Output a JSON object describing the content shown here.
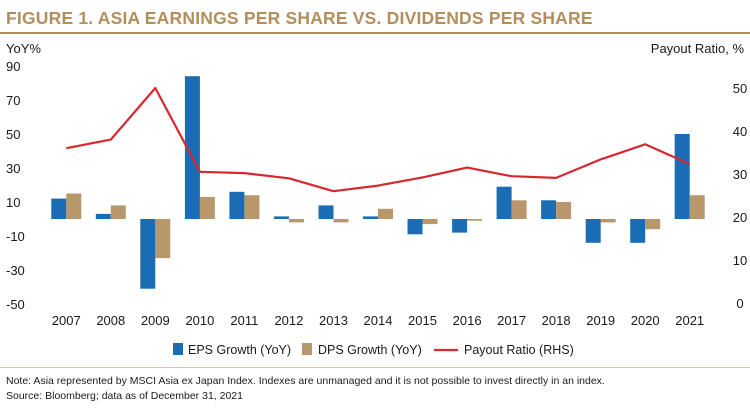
{
  "figure": {
    "title": "FIGURE 1.  ASIA EARNINGS PER SHARE VS. DIVIDENDS PER SHARE",
    "note": "Note: Asia represented by MSCI Asia ex Japan Index. Indexes are unmanaged and it is not possible to invest directly in an index.",
    "source": "Source: Bloomberg; data as of December 31, 2021"
  },
  "chart_data": {
    "type": "bar",
    "categories": [
      "2007",
      "2008",
      "2009",
      "2010",
      "2011",
      "2012",
      "2013",
      "2014",
      "2015",
      "2016",
      "2017",
      "2018",
      "2019",
      "2020",
      "2021"
    ],
    "ylabel": "YoY%",
    "y2label": "Payout Ratio, %",
    "ylim": [
      -50,
      90
    ],
    "yticks": [
      -50,
      -30,
      -10,
      10,
      30,
      50,
      70,
      90
    ],
    "y2lim": [
      0,
      55
    ],
    "y2ticks": [
      0,
      10,
      20,
      30,
      40,
      50
    ],
    "grid": false,
    "legend_position": "bottom",
    "series": [
      {
        "name": "EPS Growth (YoY)",
        "type": "bar",
        "axis": "left",
        "color": "#1a6cb4",
        "values": [
          12,
          3,
          -41,
          84,
          16,
          1.5,
          8,
          1.5,
          -9,
          -8,
          19,
          11,
          -14,
          -14,
          50
        ]
      },
      {
        "name": "DPS Growth (YoY)",
        "type": "bar",
        "axis": "left",
        "color": "#b8976b",
        "values": [
          15,
          8,
          -23,
          13,
          14,
          -2,
          -2,
          6,
          -3,
          -1,
          11,
          10,
          -2,
          -6,
          14
        ]
      },
      {
        "name": "Payout Ratio (RHS)",
        "type": "line",
        "axis": "right",
        "color": "#d7282f",
        "values": [
          36,
          38,
          50,
          30.5,
          30.2,
          29,
          26,
          27.3,
          29.2,
          31.5,
          29.5,
          29.1,
          33.4,
          36.9,
          32.3
        ]
      }
    ]
  }
}
